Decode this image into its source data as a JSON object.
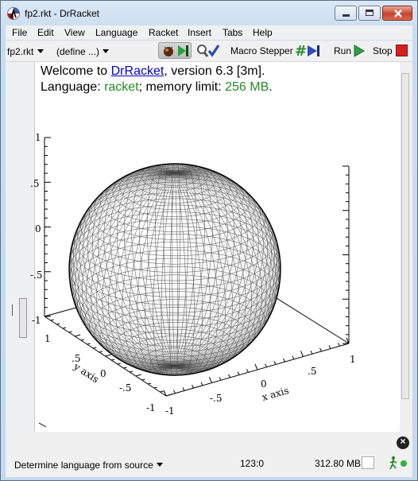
{
  "window": {
    "title": "fp2.rkt - DrRacket"
  },
  "menu": [
    "File",
    "Edit",
    "View",
    "Language",
    "Racket",
    "Insert",
    "Tabs",
    "Help"
  ],
  "toolbar": {
    "file_name": "fp2.rkt",
    "define_menu": "(define ...)",
    "macro_stepper": "Macro Stepper",
    "run": "Run",
    "stop": "Stop"
  },
  "repl": {
    "welcome_prefix": "Welcome to ",
    "welcome_link": "DrRacket",
    "welcome_suffix": ", version 6.3 [3m].",
    "language_prefix": "Language: ",
    "language_name": "racket",
    "language_mid": "; memory limit: ",
    "memory_limit": "256 MB",
    "language_end": "."
  },
  "plot": {
    "z_ticks": [
      "1",
      ".5",
      "0",
      "-.5",
      "-1"
    ],
    "x_label": "x axis",
    "y_label": "y axis",
    "x_ticks": [
      "-1",
      "-.5",
      "0",
      ".5",
      "1"
    ],
    "y_ticks": [
      "1",
      ".5",
      "0",
      "-.5",
      "-1"
    ],
    "right_tick": "1"
  },
  "status": {
    "language": "Determine language from source",
    "position": "123:0",
    "memory": "312.80 MB"
  },
  "colors": {
    "accent_link": "#0000cc",
    "racket_green": "#228b22",
    "run_green": "#2ea043",
    "stop_red": "#d42020"
  }
}
